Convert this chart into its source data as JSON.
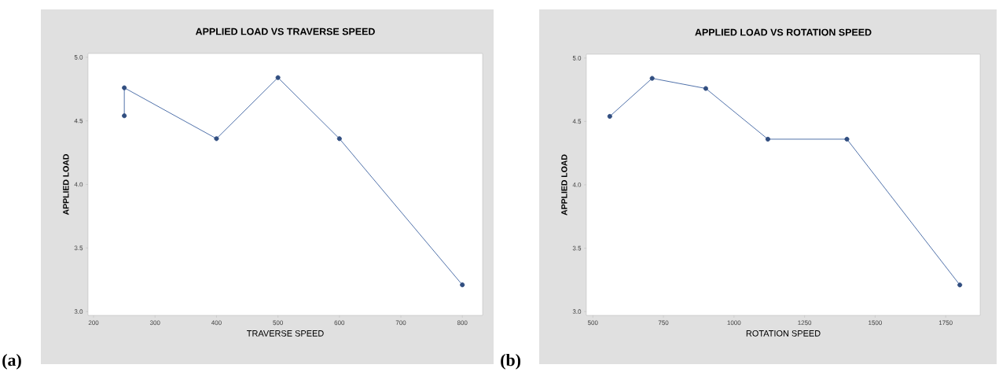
{
  "chart_data": [
    {
      "type": "line",
      "title": "APPLIED LOAD VS TRAVERSE SPEED",
      "xlabel": "TRAVERSE SPEED",
      "ylabel": "APPLIED LOAD",
      "x": [
        250,
        250,
        400,
        500,
        600,
        800
      ],
      "values": [
        4.54,
        4.76,
        4.36,
        4.84,
        4.36,
        3.21
      ],
      "color": "#3d62a0",
      "marker": "circle",
      "xlim": [
        191,
        833
      ],
      "ylim": [
        2.97,
        5.03
      ],
      "xticks": [
        200,
        300,
        400,
        500,
        600,
        700,
        800
      ],
      "yticks": [
        {
          "value": 3,
          "label": "3.0"
        },
        {
          "value": 3.5,
          "label": "3.5"
        },
        {
          "value": 4,
          "label": "4.0"
        },
        {
          "value": 4.5,
          "label": "4.5"
        },
        {
          "value": 5,
          "label": "5.0"
        }
      ],
      "annotations": [
        "(a)"
      ]
    },
    {
      "type": "line",
      "title": "APPLIED LOAD VS ROTATION SPEED",
      "xlabel": "ROTATION SPEED",
      "ylabel": "APPLIED LOAD",
      "x": [
        560,
        710,
        900,
        1120,
        1400,
        1800
      ],
      "values": [
        4.54,
        4.84,
        4.76,
        4.36,
        4.36,
        3.21
      ],
      "color": "#3d62a0",
      "marker": "circle",
      "xlim": [
        477,
        1872
      ],
      "ylim": [
        2.97,
        5.03
      ],
      "xticks": [
        500,
        750,
        1000,
        1250,
        1500,
        1750
      ],
      "yticks": [
        {
          "value": 3,
          "label": "3.0"
        },
        {
          "value": 3.5,
          "label": "3.5"
        },
        {
          "value": 4,
          "label": "4.0"
        },
        {
          "value": 4.5,
          "label": "4.5"
        },
        {
          "value": 5,
          "label": "5.0"
        }
      ],
      "annotations": [
        "(b)"
      ]
    }
  ]
}
